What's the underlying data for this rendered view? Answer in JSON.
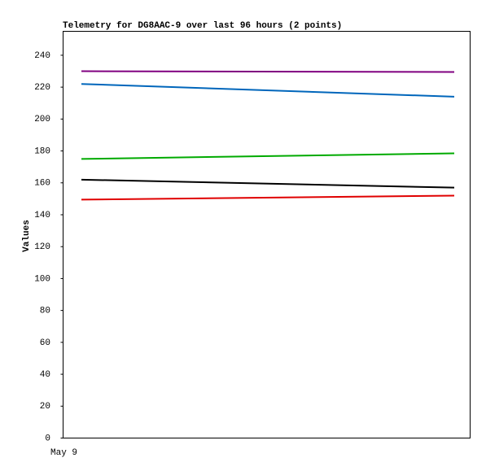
{
  "chart_data": {
    "type": "line",
    "title": "Telemetry for DG8AAC-9 over last 96 hours (2 points)",
    "y_label": "Values",
    "categories": [
      null,
      null
    ],
    "xtick_labels": [
      "May 9"
    ],
    "series": [
      {
        "color": "#800080",
        "values": [
          230,
          229.5
        ]
      },
      {
        "color": "#0066bb",
        "values": [
          222,
          214
        ]
      },
      {
        "color": "#00aa00",
        "values": [
          175,
          178.5
        ]
      },
      {
        "color": "#000000",
        "values": [
          162,
          157
        ]
      },
      {
        "color": "#e00000",
        "values": [
          149.5,
          152
        ]
      }
    ],
    "ylim": [
      0,
      255
    ],
    "yticks": [
      0,
      20,
      40,
      60,
      80,
      100,
      120,
      140,
      160,
      180,
      200,
      220,
      240
    ]
  }
}
